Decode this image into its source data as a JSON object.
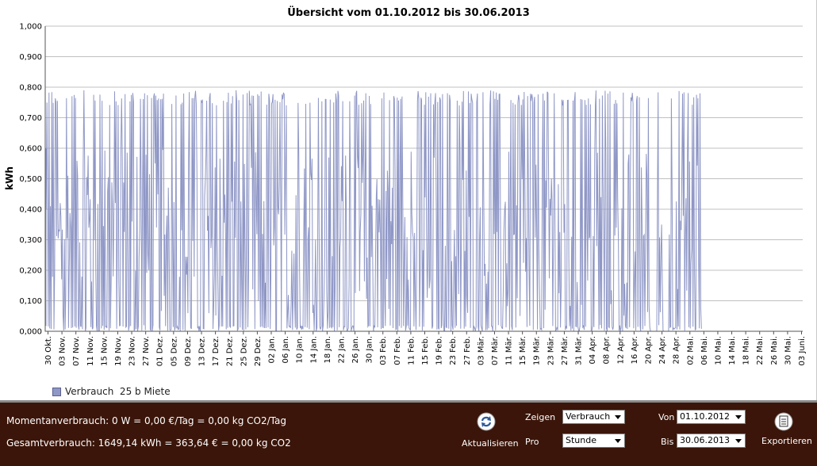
{
  "chart_data": {
    "type": "line",
    "title": "Übersicht vom 01.10.2012 bis 30.06.2013",
    "ylabel": "kWh",
    "xlabel": "",
    "ylim": [
      0,
      1.0
    ],
    "y_ticks": [
      "0,000",
      "0,100",
      "0,200",
      "0,300",
      "0,400",
      "0,500",
      "0,600",
      "0,700",
      "0,800",
      "0,900",
      "1,000"
    ],
    "x_ticks": [
      "30 Okt.",
      "03 Nov.",
      "07 Nov.",
      "11 Nov.",
      "15 Nov.",
      "19 Nov.",
      "23 Nov.",
      "27 Nov.",
      "01 Dez.",
      "05 Dez.",
      "09 Dez.",
      "13 Dez.",
      "17 Dez.",
      "21 Dez.",
      "25 Dez.",
      "29 Dez.",
      "02 Jan.",
      "06 Jan.",
      "10 Jan.",
      "14 Jan.",
      "18 Jan.",
      "22 Jan.",
      "26 Jan.",
      "30 Jan.",
      "03 Feb.",
      "07 Feb.",
      "11 Feb.",
      "15 Feb.",
      "19 Feb.",
      "23 Feb.",
      "27 Feb.",
      "03 Mär.",
      "07 Mär.",
      "11 Mär.",
      "15 Mär.",
      "19 Mär.",
      "23 Mär.",
      "27 Mär.",
      "31 Mär.",
      "04 Apr.",
      "08 Apr.",
      "12 Apr.",
      "16 Apr.",
      "20 Apr.",
      "24 Apr.",
      "28 Apr.",
      "02 Mai.",
      "06 Mai.",
      "10 Mai.",
      "14 Mai.",
      "18 Mai.",
      "22 Mai.",
      "26 Mai.",
      "30 Mai.",
      "03 Juni."
    ],
    "x_range": [
      "30 Okt.",
      "03 Juni."
    ],
    "data_end": "05 Mai.",
    "typical_peak": 0.76,
    "max_peak": 0.79,
    "min_value": 0.0,
    "gaps": [
      [
        "21 Apr.",
        "23 Apr."
      ],
      [
        "25 Apr.",
        "27 Apr."
      ]
    ],
    "series": [
      {
        "name": "Verbrauch  25 b Miete",
        "color": "#8f97c6"
      }
    ],
    "grid": true,
    "legend_position": "bottom-left"
  },
  "legend": {
    "label": "Verbrauch  25 b Miete"
  },
  "status": {
    "momentan": "Momentanverbrauch: 0 W = 0,00 €/Tag = 0,00 kg CO2/Tag",
    "gesamt": "Gesamtverbrauch: 1649,14 kWh = 363,64 € = 0,00 kg CO2"
  },
  "controls": {
    "refresh_label": "Aktualisieren",
    "zeigen_label": "Zeigen",
    "zeigen_value": "Verbrauch",
    "pro_label": "Pro",
    "pro_value": "Stunde",
    "von_label": "Von",
    "von_value": "01.10.2012",
    "bis_label": "Bis",
    "bis_value": "30.06.2013",
    "export_label": "Exportieren"
  },
  "icons": {
    "refresh": "refresh-icon",
    "export": "document-export-icon"
  },
  "colors": {
    "series": "#8f97c6",
    "control_bar": "#3b1509",
    "grid": "#c0c0c0"
  }
}
